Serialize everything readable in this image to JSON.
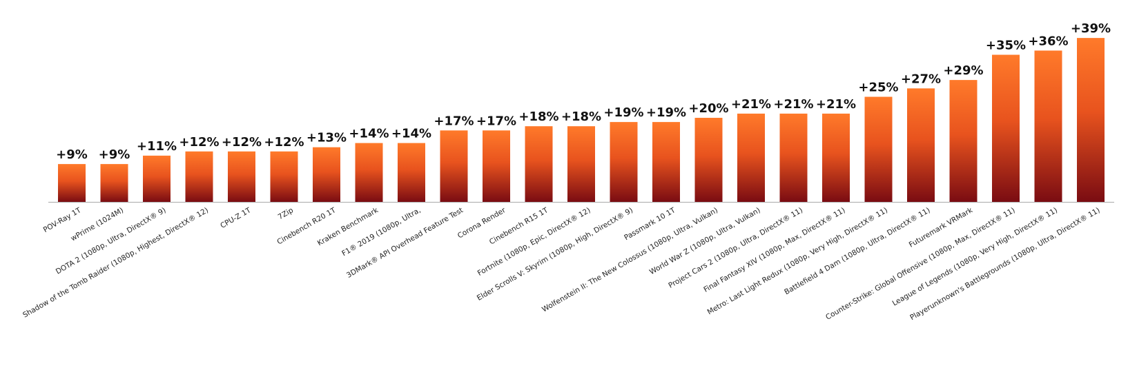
{
  "chart_data": {
    "type": "bar",
    "categories": [
      "POV-Ray 1T",
      "wPrime (1024M)",
      "DOTA 2 (1080p, Ultra, DirectX® 9)",
      "Shadow of the Tomb Raider (1080p, Highest, DirectX® 12)",
      "CPU-Z 1T",
      "7Zip",
      "Cinebench R20 1T",
      "Kraken Benchmark",
      "F1® 2019 (1080p, Ultra,",
      "3DMark® API Overhead Feature Test",
      "Corona Render",
      "Cinebench R15 1T",
      "Fortnite (1080p, Epic, DirectX® 12)",
      "Elder Scrolls V: Skyrim (1080p, High, DirectX® 9)",
      "Passmark 10 1T",
      "Wolfenstein II: The New Colossus (1080p, Ultra, Vulkan)",
      "World War Z (1080p, Ultra, Vulkan)",
      "Project Cars 2 (1080p, Ultra, DirectX® 11)",
      "Final Fantasy XIV (1080p, Max, DirectX® 11)",
      "Metro: Last Light Redux (1080p, Very High, DirectX® 11)",
      "Battlefield 4 Dam (1080p, Ultra, DirectX® 11)",
      "Futuremark VRMark",
      "Counter-Strike: Global Offensive (1080p, Max, DirectX® 11)",
      "League of Legends (1080p, Very High, DirectX® 11)",
      "Playerunknown's Battlegrounds (1080p, Ultra, DirectX® 11)"
    ],
    "values": [
      9,
      9,
      11,
      12,
      12,
      12,
      13,
      14,
      14,
      17,
      17,
      18,
      18,
      19,
      19,
      20,
      21,
      21,
      21,
      25,
      27,
      29,
      35,
      36,
      39
    ],
    "value_labels": [
      "+9%",
      "+9%",
      "+11%",
      "+12%",
      "+12%",
      "+12%",
      "+13%",
      "+14%",
      "+14%",
      "+17%",
      "+17%",
      "+18%",
      "+18%",
      "+19%",
      "+19%",
      "+20%",
      "+21%",
      "+21%",
      "+21%",
      "+25%",
      "+27%",
      "+29%",
      "+35%",
      "+36%",
      "+39%"
    ],
    "colors": {
      "bar_top": "#ff7a2a",
      "bar_mid": "#e8531e",
      "bar_bottom": "#7a0c12",
      "baseline": "#a8a8a8"
    },
    "ylim": [
      0,
      39
    ],
    "grid": false,
    "legend": "none"
  }
}
